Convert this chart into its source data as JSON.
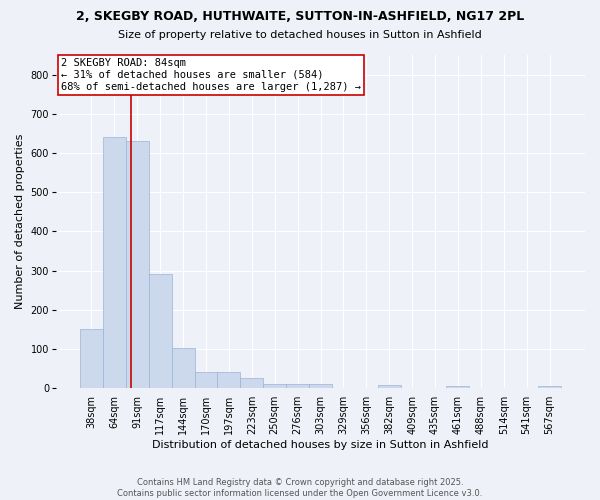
{
  "title_line1": "2, SKEGBY ROAD, HUTHWAITE, SUTTON-IN-ASHFIELD, NG17 2PL",
  "title_line2": "Size of property relative to detached houses in Sutton in Ashfield",
  "xlabel": "Distribution of detached houses by size in Sutton in Ashfield",
  "ylabel": "Number of detached properties",
  "categories": [
    "38sqm",
    "64sqm",
    "91sqm",
    "117sqm",
    "144sqm",
    "170sqm",
    "197sqm",
    "223sqm",
    "250sqm",
    "276sqm",
    "303sqm",
    "329sqm",
    "356sqm",
    "382sqm",
    "409sqm",
    "435sqm",
    "461sqm",
    "488sqm",
    "514sqm",
    "541sqm",
    "567sqm"
  ],
  "bar_heights": [
    150,
    640,
    630,
    290,
    103,
    42,
    42,
    25,
    10,
    10,
    10,
    0,
    0,
    7,
    0,
    0,
    5,
    0,
    0,
    0,
    5
  ],
  "bar_color": "#ccd9ec",
  "bar_edgecolor": "#9ab3d5",
  "ylim": [
    0,
    850
  ],
  "yticks": [
    0,
    100,
    200,
    300,
    400,
    500,
    600,
    700,
    800
  ],
  "marker_color": "#cc0000",
  "annotation_title": "2 SKEGBY ROAD: 84sqm",
  "annotation_line1": "← 31% of detached houses are smaller (584)",
  "annotation_line2": "68% of semi-detached houses are larger (1,287) →",
  "annotation_box_color": "#cc0000",
  "footer_line1": "Contains HM Land Registry data © Crown copyright and database right 2025.",
  "footer_line2": "Contains public sector information licensed under the Open Government Licence v3.0.",
  "background_color": "#eef2f8",
  "plot_bg_color": "#eef2f8",
  "grid_color": "#ffffff",
  "title_fontsize": 9,
  "subtitle_fontsize": 8,
  "axis_label_fontsize": 8,
  "tick_fontsize": 7,
  "annotation_fontsize": 7.5,
  "footer_fontsize": 6
}
